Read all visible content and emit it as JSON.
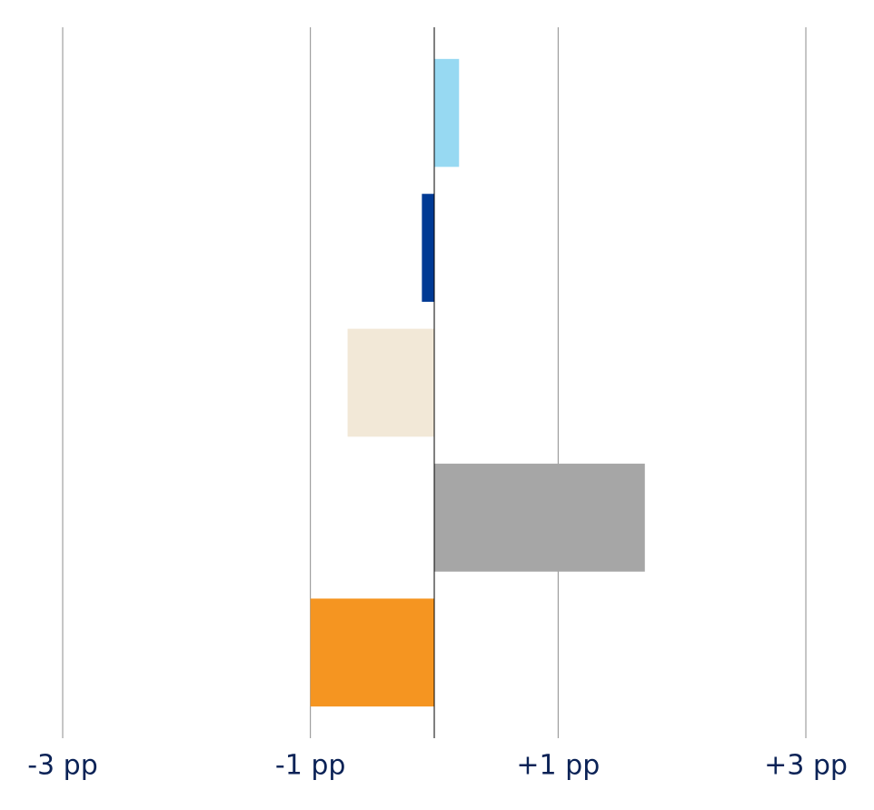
{
  "chart_data": {
    "type": "hbar",
    "categories": [
      null,
      null,
      null,
      null,
      null
    ],
    "values": [
      0.2,
      -0.1,
      -0.7,
      1.7,
      -1.0
    ],
    "colors": [
      "#97d9f2",
      "#003a94",
      "#f2e8d7",
      "#a6a6a6",
      "#f59521"
    ],
    "xlim": [
      -3,
      3
    ],
    "xticks": [
      {
        "value": -3,
        "label": "-3 pp"
      },
      {
        "value": -1,
        "label": "-1 pp"
      },
      {
        "value": 1,
        "label": "+1 pp"
      },
      {
        "value": 3,
        "label": "+3 pp"
      }
    ],
    "grid": true
  }
}
